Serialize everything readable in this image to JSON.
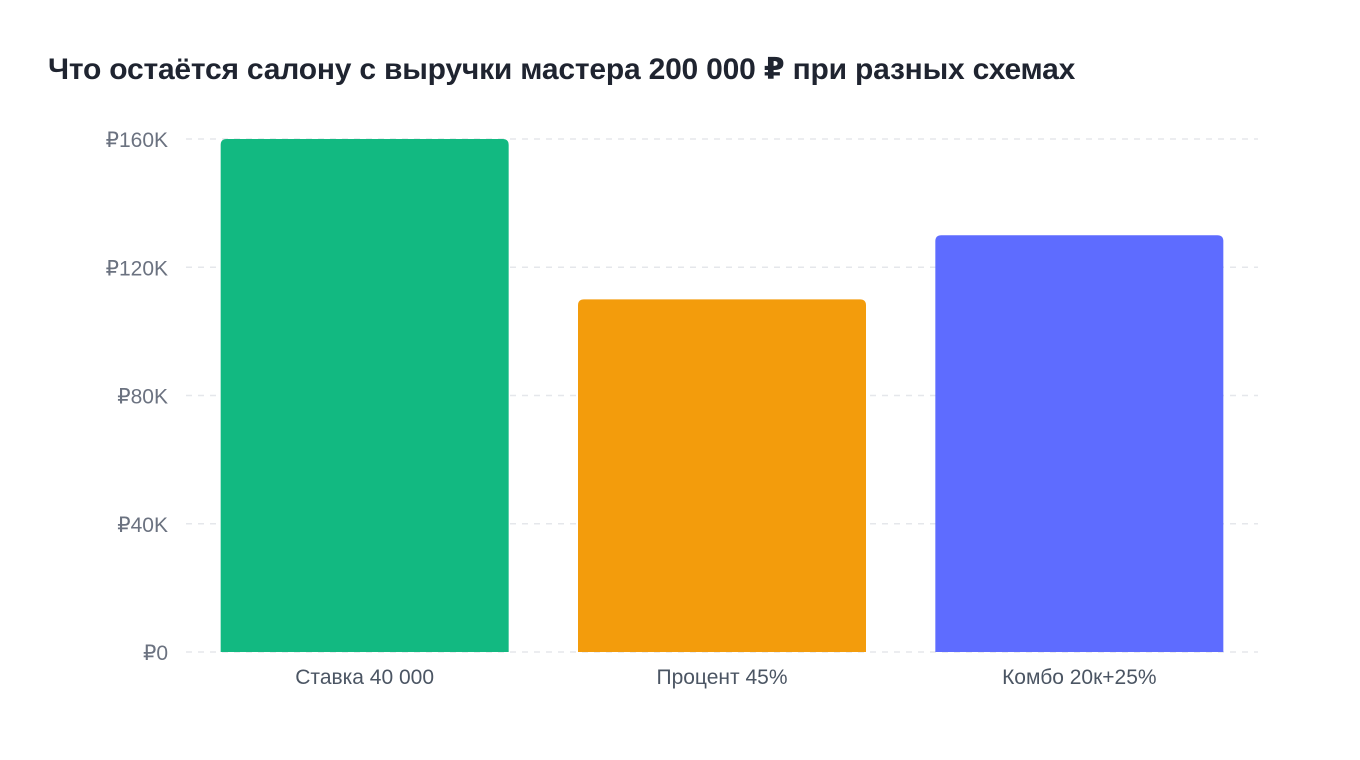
{
  "chart_data": {
    "type": "bar",
    "title": "Что остаётся салону с выручки мастера 200 000 ₽ при разных схемах",
    "xlabel": "",
    "ylabel": "",
    "categories": [
      "Ставка 40 000",
      "Процент 45%",
      "Комбо 20к+25%"
    ],
    "values": [
      160000,
      110000,
      130000
    ],
    "colors": [
      "#12b981",
      "#f39c0c",
      "#5e6cff"
    ],
    "ylim": [
      0,
      160000
    ],
    "yticks": [
      {
        "value": 0,
        "label": "₽0"
      },
      {
        "value": 40000,
        "label": "₽40K"
      },
      {
        "value": 80000,
        "label": "₽80K"
      },
      {
        "value": 120000,
        "label": "₽120K"
      },
      {
        "value": 160000,
        "label": "₽160K"
      }
    ],
    "grid": true,
    "legend": "none"
  }
}
